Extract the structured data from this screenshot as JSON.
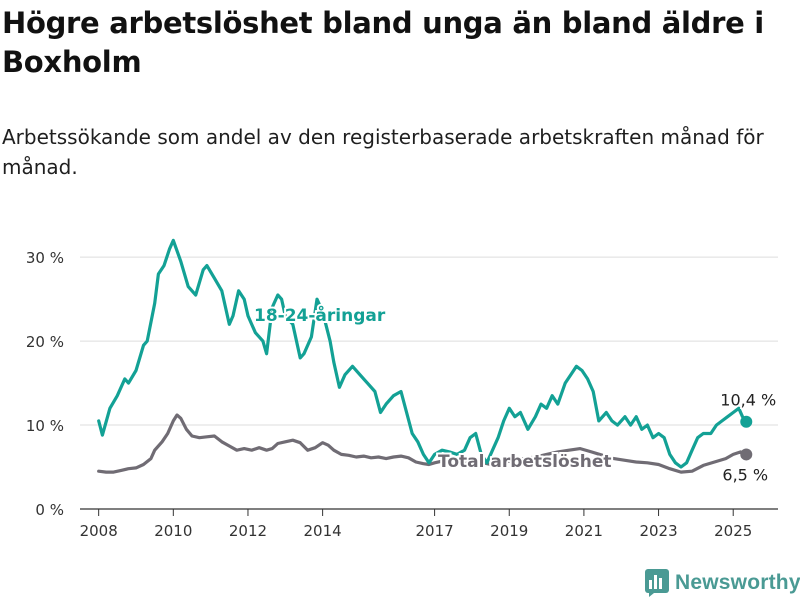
{
  "title": "Högre arbetslöshet bland unga än bland äldre i Boxholm",
  "subtitle": "Arbetssökande som andel av den registerbaserade arbetskraften månad för månad.",
  "brand": {
    "name": "Newsworthy",
    "icon": "newsworthy-logo-icon"
  },
  "colors": {
    "youth": "#13a195",
    "total": "#706c74",
    "grid": "#dddddd",
    "axis": "#333333",
    "brand": "#4a9a94"
  },
  "chart_data": {
    "type": "line",
    "xlim": [
      2007.5,
      2026.2
    ],
    "ylim": [
      0,
      33
    ],
    "x_ticks": [
      2008,
      2010,
      2012,
      2014,
      2017,
      2019,
      2021,
      2023,
      2025
    ],
    "x_tick_labels": [
      "2008",
      "2010",
      "2012",
      "2014",
      "2017",
      "2019",
      "2021",
      "2023",
      "2025"
    ],
    "y_ticks": [
      0,
      10,
      20,
      30
    ],
    "y_tick_labels": [
      "0 %",
      "10 %",
      "20 %",
      "30 %"
    ],
    "grid": true,
    "series": [
      {
        "name": "18-24-åringar",
        "key": "youth",
        "color": "#13a195",
        "end_label": "10,4 %",
        "points": [
          [
            2008.0,
            10.5
          ],
          [
            2008.1,
            8.8
          ],
          [
            2008.3,
            12.0
          ],
          [
            2008.5,
            13.5
          ],
          [
            2008.7,
            15.5
          ],
          [
            2008.8,
            15.0
          ],
          [
            2009.0,
            16.5
          ],
          [
            2009.2,
            19.5
          ],
          [
            2009.3,
            20.0
          ],
          [
            2009.5,
            24.5
          ],
          [
            2009.6,
            28.0
          ],
          [
            2009.75,
            29.0
          ],
          [
            2009.9,
            31.0
          ],
          [
            2010.0,
            32.0
          ],
          [
            2010.2,
            29.5
          ],
          [
            2010.4,
            26.5
          ],
          [
            2010.6,
            25.5
          ],
          [
            2010.8,
            28.5
          ],
          [
            2010.9,
            29.0
          ],
          [
            2011.1,
            27.5
          ],
          [
            2011.3,
            26.0
          ],
          [
            2011.5,
            22.0
          ],
          [
            2011.6,
            23.0
          ],
          [
            2011.75,
            26.0
          ],
          [
            2011.9,
            25.0
          ],
          [
            2012.0,
            23.0
          ],
          [
            2012.2,
            21.0
          ],
          [
            2012.4,
            20.0
          ],
          [
            2012.5,
            18.5
          ],
          [
            2012.65,
            24.0
          ],
          [
            2012.8,
            25.5
          ],
          [
            2012.9,
            25.0
          ],
          [
            2013.0,
            23.0
          ],
          [
            2013.2,
            22.0
          ],
          [
            2013.4,
            18.0
          ],
          [
            2013.5,
            18.5
          ],
          [
            2013.7,
            20.5
          ],
          [
            2013.85,
            25.0
          ],
          [
            2014.0,
            23.5
          ],
          [
            2014.2,
            20.0
          ],
          [
            2014.3,
            17.5
          ],
          [
            2014.45,
            14.5
          ],
          [
            2014.6,
            16.0
          ],
          [
            2014.8,
            17.0
          ],
          [
            2015.0,
            16.0
          ],
          [
            2015.2,
            15.0
          ],
          [
            2015.4,
            14.0
          ],
          [
            2015.55,
            11.5
          ],
          [
            2015.7,
            12.5
          ],
          [
            2015.9,
            13.5
          ],
          [
            2016.1,
            14.0
          ],
          [
            2016.25,
            11.5
          ],
          [
            2016.4,
            9.0
          ],
          [
            2016.55,
            8.0
          ],
          [
            2016.7,
            6.5
          ],
          [
            2016.85,
            5.5
          ],
          [
            2017.0,
            6.5
          ],
          [
            2017.2,
            7.0
          ],
          [
            2017.4,
            6.8
          ],
          [
            2017.6,
            6.5
          ],
          [
            2017.8,
            7.0
          ],
          [
            2017.95,
            8.5
          ],
          [
            2018.1,
            9.0
          ],
          [
            2018.25,
            6.5
          ],
          [
            2018.4,
            5.5
          ],
          [
            2018.55,
            7.0
          ],
          [
            2018.7,
            8.5
          ],
          [
            2018.85,
            10.5
          ],
          [
            2019.0,
            12.0
          ],
          [
            2019.15,
            11.0
          ],
          [
            2019.3,
            11.5
          ],
          [
            2019.5,
            9.5
          ],
          [
            2019.7,
            11.0
          ],
          [
            2019.85,
            12.5
          ],
          [
            2020.0,
            12.0
          ],
          [
            2020.15,
            13.5
          ],
          [
            2020.3,
            12.5
          ],
          [
            2020.5,
            15.0
          ],
          [
            2020.65,
            16.0
          ],
          [
            2020.8,
            17.0
          ],
          [
            2020.95,
            16.5
          ],
          [
            2021.1,
            15.5
          ],
          [
            2021.25,
            14.0
          ],
          [
            2021.4,
            10.5
          ],
          [
            2021.6,
            11.5
          ],
          [
            2021.75,
            10.5
          ],
          [
            2021.9,
            10.0
          ],
          [
            2022.1,
            11.0
          ],
          [
            2022.25,
            10.0
          ],
          [
            2022.4,
            11.0
          ],
          [
            2022.55,
            9.5
          ],
          [
            2022.7,
            10.0
          ],
          [
            2022.85,
            8.5
          ],
          [
            2023.0,
            9.0
          ],
          [
            2023.15,
            8.5
          ],
          [
            2023.3,
            6.5
          ],
          [
            2023.45,
            5.5
          ],
          [
            2023.6,
            5.0
          ],
          [
            2023.75,
            5.5
          ],
          [
            2023.9,
            7.0
          ],
          [
            2024.05,
            8.5
          ],
          [
            2024.2,
            9.0
          ],
          [
            2024.4,
            9.0
          ],
          [
            2024.55,
            10.0
          ],
          [
            2024.7,
            10.5
          ],
          [
            2024.85,
            11.0
          ],
          [
            2025.0,
            11.5
          ],
          [
            2025.15,
            12.0
          ],
          [
            2025.25,
            11.0
          ],
          [
            2025.35,
            10.4
          ]
        ]
      },
      {
        "name": "Total arbetslöshet",
        "key": "total",
        "color": "#706c74",
        "end_label": "6,5 %",
        "points": [
          [
            2008.0,
            4.5
          ],
          [
            2008.2,
            4.4
          ],
          [
            2008.4,
            4.4
          ],
          [
            2008.6,
            4.6
          ],
          [
            2008.8,
            4.8
          ],
          [
            2009.0,
            4.9
          ],
          [
            2009.2,
            5.3
          ],
          [
            2009.4,
            6.0
          ],
          [
            2009.5,
            7.0
          ],
          [
            2009.7,
            8.0
          ],
          [
            2009.85,
            9.0
          ],
          [
            2010.0,
            10.5
          ],
          [
            2010.1,
            11.2
          ],
          [
            2010.2,
            10.8
          ],
          [
            2010.35,
            9.5
          ],
          [
            2010.5,
            8.7
          ],
          [
            2010.7,
            8.5
          ],
          [
            2010.9,
            8.6
          ],
          [
            2011.1,
            8.7
          ],
          [
            2011.3,
            8.0
          ],
          [
            2011.5,
            7.5
          ],
          [
            2011.7,
            7.0
          ],
          [
            2011.9,
            7.2
          ],
          [
            2012.1,
            7.0
          ],
          [
            2012.3,
            7.3
          ],
          [
            2012.5,
            7.0
          ],
          [
            2012.65,
            7.2
          ],
          [
            2012.8,
            7.8
          ],
          [
            2013.0,
            8.0
          ],
          [
            2013.2,
            8.2
          ],
          [
            2013.4,
            7.9
          ],
          [
            2013.6,
            7.0
          ],
          [
            2013.8,
            7.3
          ],
          [
            2014.0,
            7.9
          ],
          [
            2014.15,
            7.6
          ],
          [
            2014.3,
            7.0
          ],
          [
            2014.5,
            6.5
          ],
          [
            2014.7,
            6.4
          ],
          [
            2014.9,
            6.2
          ],
          [
            2015.1,
            6.3
          ],
          [
            2015.3,
            6.1
          ],
          [
            2015.5,
            6.2
          ],
          [
            2015.7,
            6.0
          ],
          [
            2015.9,
            6.2
          ],
          [
            2016.1,
            6.3
          ],
          [
            2016.3,
            6.1
          ],
          [
            2016.5,
            5.6
          ],
          [
            2016.7,
            5.4
          ],
          [
            2016.85,
            5.3
          ],
          [
            2017.0,
            5.5
          ],
          [
            2017.3,
            5.8
          ],
          [
            2017.6,
            5.5
          ],
          [
            2017.9,
            5.7
          ],
          [
            2018.2,
            5.6
          ],
          [
            2018.5,
            5.3
          ],
          [
            2018.8,
            5.5
          ],
          [
            2019.1,
            5.8
          ],
          [
            2019.4,
            6.0
          ],
          [
            2019.7,
            6.2
          ],
          [
            2020.0,
            6.5
          ],
          [
            2020.3,
            6.8
          ],
          [
            2020.6,
            7.0
          ],
          [
            2020.9,
            7.2
          ],
          [
            2021.2,
            6.8
          ],
          [
            2021.5,
            6.4
          ],
          [
            2021.8,
            6.0
          ],
          [
            2022.1,
            5.8
          ],
          [
            2022.4,
            5.6
          ],
          [
            2022.7,
            5.5
          ],
          [
            2023.0,
            5.3
          ],
          [
            2023.3,
            4.8
          ],
          [
            2023.6,
            4.4
          ],
          [
            2023.9,
            4.5
          ],
          [
            2024.2,
            5.2
          ],
          [
            2024.5,
            5.6
          ],
          [
            2024.8,
            6.0
          ],
          [
            2025.0,
            6.5
          ],
          [
            2025.2,
            6.8
          ],
          [
            2025.35,
            6.5
          ]
        ]
      }
    ]
  }
}
